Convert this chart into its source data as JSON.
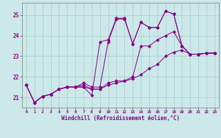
{
  "xlabel": "Windchill (Refroidissement éolien,°C)",
  "background_color": "#cce8e8",
  "grid_color": "#aad0d0",
  "line_color": "#880088",
  "xlim": [
    -0.5,
    23.5
  ],
  "ylim": [
    20.5,
    25.6
  ],
  "yticks": [
    21,
    22,
    23,
    24,
    25
  ],
  "xticks": [
    0,
    1,
    2,
    3,
    4,
    5,
    6,
    7,
    8,
    9,
    10,
    11,
    12,
    13,
    14,
    15,
    16,
    17,
    18,
    19,
    20,
    21,
    22,
    23
  ],
  "series": [
    {
      "x": [
        0,
        1,
        2,
        3,
        4,
        5,
        6,
        7,
        8,
        9,
        10,
        11,
        12,
        13,
        14,
        15,
        16,
        17,
        18,
        19,
        20,
        21,
        22,
        23
      ],
      "y": [
        21.6,
        20.75,
        21.05,
        21.15,
        21.4,
        21.5,
        21.5,
        21.5,
        21.1,
        23.7,
        23.8,
        24.85,
        24.85,
        23.6,
        24.65,
        24.4,
        24.4,
        25.2,
        25.05,
        23.5,
        23.1,
        23.1,
        23.15,
        23.15
      ]
    },
    {
      "x": [
        0,
        1,
        2,
        3,
        4,
        5,
        6,
        7,
        8,
        9,
        10,
        11,
        12,
        13,
        14,
        15,
        16,
        17,
        18,
        19,
        20,
        21,
        22,
        23
      ],
      "y": [
        21.6,
        20.75,
        21.05,
        21.15,
        21.4,
        21.5,
        21.5,
        21.7,
        21.5,
        21.5,
        23.7,
        24.8,
        24.8,
        23.6,
        24.65,
        24.4,
        24.4,
        25.2,
        25.05,
        23.5,
        23.1,
        23.1,
        23.15,
        23.15
      ]
    },
    {
      "x": [
        0,
        1,
        2,
        3,
        4,
        5,
        6,
        7,
        8,
        9,
        10,
        11,
        12,
        13,
        14,
        15,
        16,
        17,
        18,
        19,
        20,
        21,
        22,
        23
      ],
      "y": [
        21.6,
        20.75,
        21.05,
        21.15,
        21.4,
        21.5,
        21.5,
        21.6,
        21.4,
        21.4,
        21.7,
        21.8,
        21.8,
        22.0,
        23.5,
        23.5,
        23.8,
        24.0,
        24.2,
        23.5,
        23.1,
        23.1,
        23.15,
        23.15
      ]
    },
    {
      "x": [
        0,
        1,
        2,
        3,
        4,
        5,
        6,
        7,
        8,
        9,
        10,
        11,
        12,
        13,
        14,
        15,
        16,
        17,
        18,
        19,
        20,
        21,
        22,
        23
      ],
      "y": [
        21.6,
        20.75,
        21.05,
        21.15,
        21.4,
        21.5,
        21.5,
        21.5,
        21.4,
        21.4,
        21.6,
        21.7,
        21.8,
        21.9,
        22.1,
        22.4,
        22.6,
        23.0,
        23.2,
        23.3,
        23.1,
        23.1,
        23.15,
        23.15
      ]
    }
  ]
}
